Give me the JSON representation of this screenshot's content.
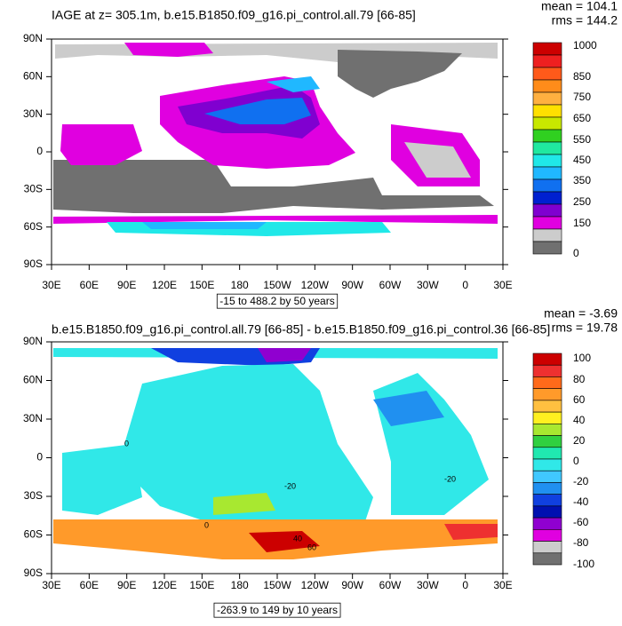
{
  "panels": [
    {
      "title": "IAGE at z= 305.1m, b.e15.B1850.f09_g16.pi_control.all.79 [66-85]",
      "mean": "mean = 104.1",
      "rms": "rms = 144.2",
      "lat_labels": [
        "90N",
        "60N",
        "30N",
        "0",
        "30S",
        "60S",
        "90S"
      ],
      "lon_labels": [
        "30E",
        "60E",
        "90E",
        "120E",
        "150E",
        "180",
        "150W",
        "120W",
        "90W",
        "60W",
        "30W",
        "0",
        "30E"
      ],
      "range_note": "-15 to 488.2 by 50 years",
      "colorbar": {
        "colors": [
          "#cc0000",
          "#ee2020",
          "#ff5a1a",
          "#ff8c1a",
          "#ffb040",
          "#ffe000",
          "#c8e800",
          "#30d020",
          "#20e8a0",
          "#20e8e8",
          "#20b8ff",
          "#1070f0",
          "#0020d0",
          "#8000d0",
          "#e000e0",
          "#cccccc",
          "#707070"
        ],
        "labels": [
          "1000",
          "850",
          "750",
          "650",
          "550",
          "450",
          "350",
          "250",
          "150",
          "0"
        ]
      }
    },
    {
      "title": "b.e15.B1850.f09_g16.pi_control.all.79 [66-85] - b.e15.B1850.f09_g16.pi_control.36 [66-85]",
      "mean": "mean = -3.69",
      "rms": "rms = 19.78",
      "lat_labels": [
        "90N",
        "60N",
        "30N",
        "0",
        "30S",
        "60S",
        "90S"
      ],
      "lon_labels": [
        "30E",
        "60E",
        "90E",
        "120E",
        "150E",
        "180",
        "150W",
        "120W",
        "90W",
        "60W",
        "30W",
        "0",
        "30E"
      ],
      "range_note": "-263.9 to 149 by 10 years",
      "contour_labels": [
        "0",
        "-20",
        "40",
        "60",
        "-20",
        "0"
      ],
      "colorbar": {
        "colors": [
          "#cc0000",
          "#ee3030",
          "#ff6a1a",
          "#ff9a2a",
          "#ffc040",
          "#fff020",
          "#a8e830",
          "#30d040",
          "#20e8b0",
          "#30e8e8",
          "#40c8ff",
          "#2090f0",
          "#1040e0",
          "#0010b0",
          "#9000d0",
          "#e000e0",
          "#cccccc",
          "#707070"
        ],
        "labels": [
          "100",
          "80",
          "60",
          "40",
          "20",
          "0",
          "-20",
          "-40",
          "-60",
          "-80",
          "-100"
        ]
      }
    }
  ]
}
